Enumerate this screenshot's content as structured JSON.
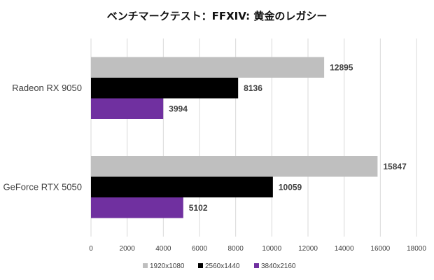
{
  "chart_data": {
    "type": "bar",
    "orientation": "horizontal",
    "title": "ベンチマークテスト：FFXIV: 黄金のレガシー",
    "categories": [
      "Radeon RX 9050",
      "GeForce RTX 5050"
    ],
    "series": [
      {
        "name": "1920x1080",
        "color": "#bfbfbf",
        "values": [
          12895,
          15847
        ]
      },
      {
        "name": "2560x1440",
        "color": "#000000",
        "values": [
          8136,
          10059
        ]
      },
      {
        "name": "3840x2160",
        "color": "#7030a0",
        "values": [
          3994,
          5102
        ]
      }
    ],
    "xlim": [
      0,
      18000
    ],
    "xticks": [
      0,
      2000,
      4000,
      6000,
      8000,
      10000,
      12000,
      14000,
      16000,
      18000
    ],
    "grid": true,
    "legend": "bottom",
    "xlabel": "",
    "ylabel": ""
  }
}
